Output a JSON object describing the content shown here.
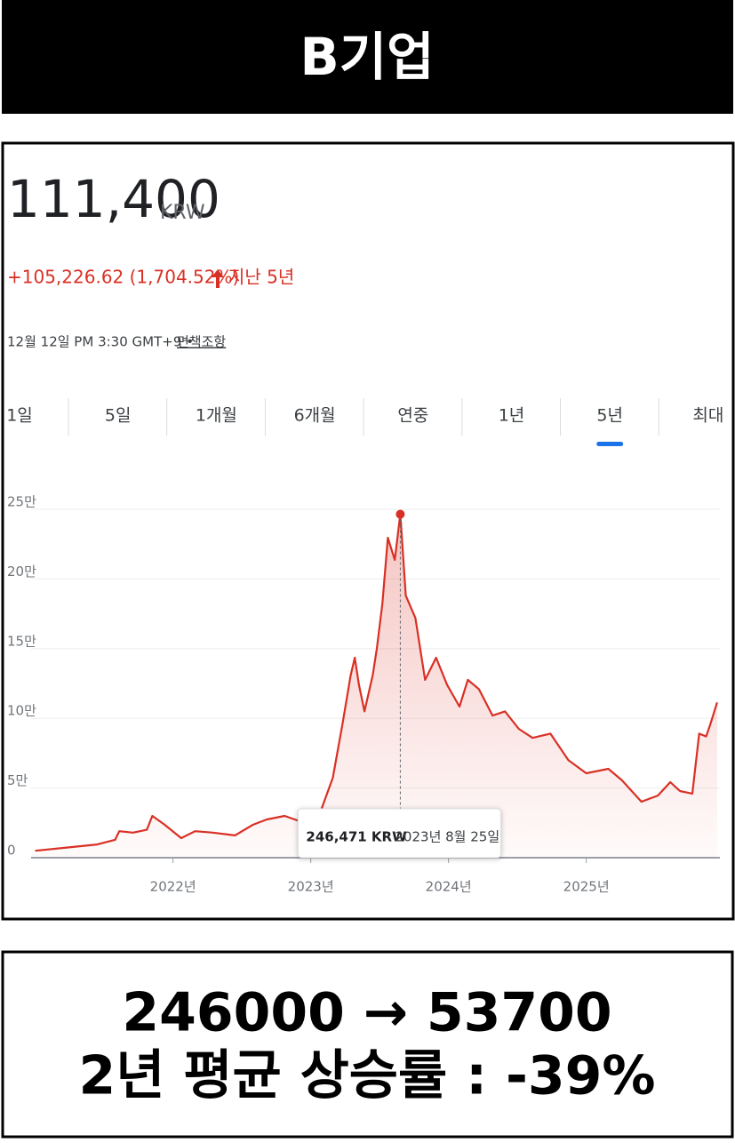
{
  "banner": {
    "title": "B기업"
  },
  "quote": {
    "price": "111,400",
    "currency": "KRW",
    "change": "+105,226.62 (1,704.52%)",
    "period": "지난 5년",
    "timestamp": "12월 12일 PM 3:30 GMT+9 •",
    "disclaimer": "면책조항"
  },
  "tabs": {
    "items": [
      "1일",
      "5일",
      "1개월",
      "6개월",
      "연중",
      "1년",
      "5년",
      "최대"
    ],
    "selected": 6
  },
  "chart_data": {
    "type": "line",
    "x": [
      2021.0,
      2021.26,
      2021.45,
      2021.58,
      2021.61,
      2021.71,
      2021.81,
      2021.85,
      2021.94,
      2022.06,
      2022.16,
      2022.29,
      2022.45,
      2022.58,
      2022.68,
      2022.81,
      2022.94,
      2023.06,
      2023.16,
      2023.23,
      2023.29,
      2023.32,
      2023.35,
      2023.39,
      2023.45,
      2023.48,
      2023.52,
      2023.56,
      2023.61,
      2023.65,
      2023.69,
      2023.76,
      2023.83,
      2023.91,
      2023.99,
      2024.08,
      2024.14,
      2024.22,
      2024.32,
      2024.41,
      2024.51,
      2024.61,
      2024.74,
      2024.87,
      2025.0,
      2025.16,
      2025.26,
      2025.4,
      2025.52,
      2025.61,
      2025.68,
      2025.77,
      2025.82,
      2025.87,
      2025.9,
      2025.95
    ],
    "series": [
      {
        "color": "#d93025",
        "values": [
          5000,
          7600,
          9500,
          12800,
          19000,
          18000,
          20000,
          30000,
          23600,
          14000,
          19000,
          18000,
          16000,
          23600,
          27400,
          30000,
          25500,
          30000,
          57400,
          95700,
          131000,
          143500,
          124000,
          105000,
          131000,
          150000,
          182000,
          229600,
          213700,
          246471,
          188000,
          172000,
          127600,
          143500,
          124000,
          108400,
          127600,
          121000,
          102000,
          105000,
          92500,
          86000,
          89000,
          70000,
          60600,
          63800,
          55500,
          40200,
          44600,
          54200,
          47800,
          46000,
          89000,
          87000,
          95600,
          111400
        ]
      }
    ],
    "xlim": [
      2020.97,
      2025.97
    ],
    "xticks": [
      {
        "value": 2022,
        "label": "2022년"
      },
      {
        "value": 2023,
        "label": "2023년"
      },
      {
        "value": 2024,
        "label": "2024년"
      },
      {
        "value": 2025,
        "label": "2025년"
      }
    ],
    "ylim": [
      0,
      270000
    ],
    "yticks": [
      0,
      {
        "value": 50000,
        "label": "5만"
      },
      {
        "value": 100000,
        "label": "10만"
      },
      {
        "value": 150000,
        "label": "15만"
      },
      {
        "value": 200000,
        "label": "20만"
      },
      {
        "value": 250000,
        "label": "25만"
      }
    ],
    "grid": true,
    "annotation": {
      "x": 2023.65,
      "y": 246471,
      "label": "246,471 KRW",
      "date": "2023년 8월 25일"
    }
  },
  "summary": {
    "line1": "246000 → 53700",
    "line2": "2년 평균 상승률 : -39%"
  }
}
